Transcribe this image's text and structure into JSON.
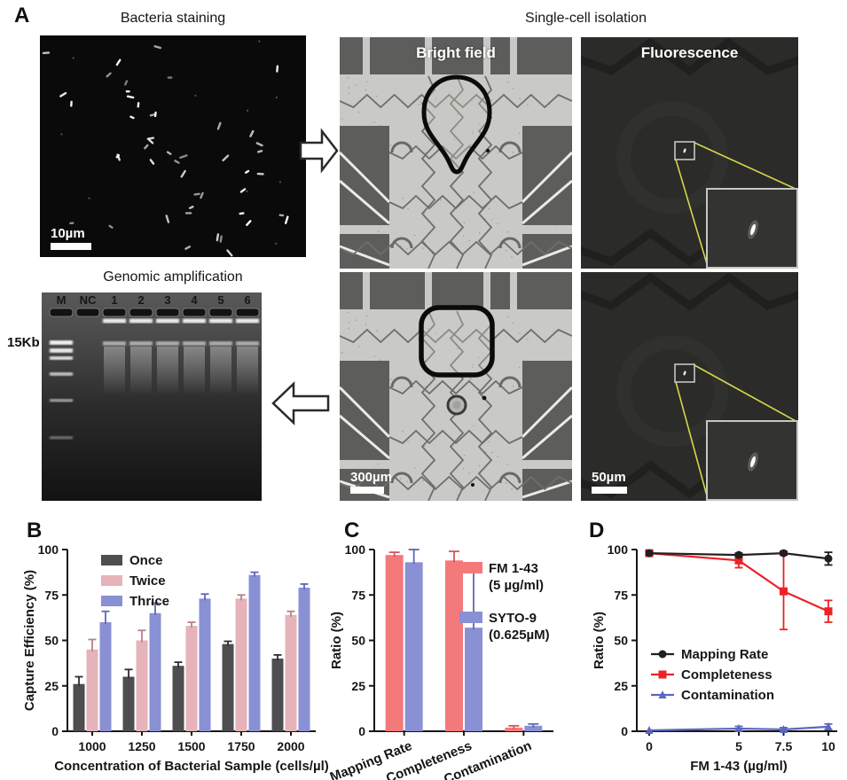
{
  "figure": {
    "panel_a": {
      "label": "A",
      "bacteria_staining": {
        "title": "Bacteria staining",
        "scale_bar": "10µm"
      },
      "single_cell_isolation": {
        "title": "Single-cell isolation",
        "bright_field_label": "Bright field",
        "fluorescence_label": "Fluorescence",
        "bright_field_scale_bar": "300µm",
        "fluorescence_scale_bar": "50µm"
      },
      "genomic_amplification": {
        "title": "Genomic amplification",
        "marker_label": "15Kb",
        "lane_labels": [
          "M",
          "NC",
          "1",
          "2",
          "3",
          "4",
          "5",
          "6"
        ]
      }
    },
    "panel_b": {
      "label": "B"
    },
    "panel_c": {
      "label": "C"
    },
    "panel_d": {
      "label": "D"
    }
  },
  "chart_data": [
    {
      "id": "capture-efficiency-bar",
      "type": "bar",
      "categories": [
        "1000",
        "1250",
        "1500",
        "1750",
        "2000"
      ],
      "series": [
        {
          "name": "Once",
          "color": "#4e4e50",
          "error_color": "#2e2e30",
          "values": [
            26,
            30,
            36,
            48,
            40
          ],
          "errors": [
            4,
            4,
            2,
            1.5,
            2
          ]
        },
        {
          "name": "Twice",
          "color": "#e5b3b9",
          "error_color": "#b7808a",
          "values": [
            45,
            50,
            58,
            73,
            64
          ],
          "errors": [
            5.5,
            5.5,
            2,
            2,
            2
          ]
        },
        {
          "name": "Thrice",
          "color": "#8a90d4",
          "error_color": "#5f66b8",
          "values": [
            60,
            65,
            73,
            86,
            79
          ],
          "errors": [
            6,
            5.5,
            2.5,
            1.5,
            2
          ]
        }
      ],
      "xlabel": "Concentration of  Bacterial Sample (cells/µl)",
      "ylabel": "Capture Efficiency (%)",
      "ylim": [
        0,
        100
      ],
      "yticks": [
        0,
        25,
        50,
        75,
        100
      ],
      "legend_position": "top-left",
      "grid": false
    },
    {
      "id": "staining-ratio-bar",
      "type": "bar",
      "categories": [
        "Mapping Rate",
        "Completeness",
        "Contamination"
      ],
      "series": [
        {
          "name": "FM 1-43",
          "name2": "(5 µg/ml)",
          "color": "#f4797b",
          "error_color": "#d95558",
          "values": [
            97,
            94,
            2
          ],
          "errors": [
            1.5,
            5,
            1
          ]
        },
        {
          "name": "SYTO-9",
          "name2": "(0.625µM)",
          "color": "#8a90d4",
          "error_color": "#5f66b8",
          "values": [
            93,
            57,
            3
          ],
          "errors": [
            7,
            34,
            1
          ]
        }
      ],
      "xlabel": "",
      "ylabel": "Ratio (%)",
      "ylim": [
        0,
        100
      ],
      "yticks": [
        0,
        25,
        50,
        75,
        100
      ],
      "tick_rotation": -22,
      "legend_position": "right",
      "grid": false
    },
    {
      "id": "fm-titration-line",
      "type": "line",
      "x": [
        0,
        5,
        7.5,
        10
      ],
      "xticklabels": [
        "0",
        "5",
        "7.5",
        "10"
      ],
      "series": [
        {
          "name": "Mapping Rate",
          "color": "#231f20",
          "marker": "circle",
          "values": [
            98,
            97,
            98,
            95
          ],
          "errors": [
            1,
            1,
            1,
            3.5
          ]
        },
        {
          "name": "Completeness",
          "color": "#ec2227",
          "marker": "square",
          "values": [
            98,
            94,
            77,
            66
          ],
          "errors": [
            1,
            4,
            21,
            6
          ]
        },
        {
          "name": "Contamination",
          "color": "#5b66c0",
          "marker": "triangle",
          "values": [
            0.5,
            1.5,
            1,
            2.5
          ],
          "errors": [
            0.5,
            1.2,
            1,
            1.5
          ]
        }
      ],
      "xlabel": "FM 1-43 (µg/ml)",
      "ylabel": "Ratio (%)",
      "ylim": [
        0,
        100
      ],
      "yticks": [
        0,
        25,
        50,
        75,
        100
      ],
      "legend_position": "middle-left",
      "grid": false
    }
  ]
}
